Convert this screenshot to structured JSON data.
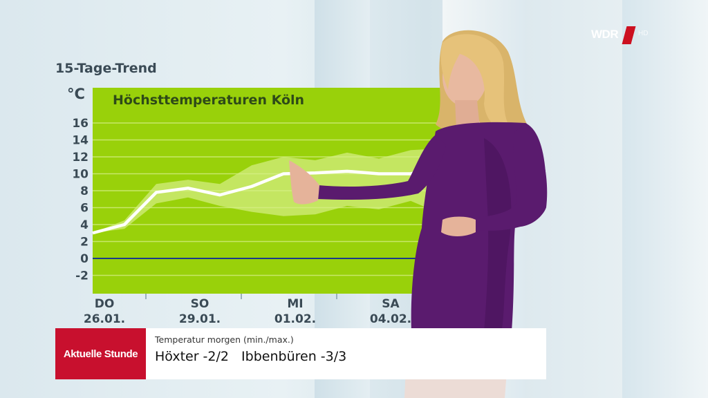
{
  "broadcast": {
    "channel_logo": "WDR",
    "channel_logo_suffix": "HD"
  },
  "chart": {
    "heading": "15-Tage-Trend",
    "unit": "°C",
    "panel_title": "Höchsttemperaturen Köln",
    "background_color": "#99d10a",
    "line_color": "#ffffff",
    "zero_line_color": "#1b3a8a"
  },
  "chart_data": {
    "type": "line",
    "title": "Höchsttemperaturen Köln",
    "ylabel": "°C",
    "ylim": [
      -3,
      17
    ],
    "yticks": [
      16,
      14,
      12,
      10,
      8,
      6,
      4,
      2,
      0,
      -2
    ],
    "xtick_labels": [
      {
        "day": "DO",
        "date": "26.01."
      },
      {
        "day": "SO",
        "date": "29.01."
      },
      {
        "day": "MI",
        "date": "01.02."
      },
      {
        "day": "SA",
        "date": "04.02."
      }
    ],
    "x": [
      0,
      1,
      2,
      3,
      4,
      5,
      6,
      7,
      8,
      9,
      10,
      11
    ],
    "series": [
      {
        "values": [
          3,
          4,
          7.8,
          8.3,
          7.5,
          8.5,
          10,
          10.1,
          10.3,
          10,
          10,
          11
        ]
      }
    ],
    "band_upper": [
      3,
      4.5,
      8.8,
      9.3,
      8.8,
      11,
      12,
      11.6,
      12.5,
      11.8,
      12.8,
      13
    ],
    "band_lower": [
      3,
      3.5,
      6.5,
      7.2,
      6.2,
      5.5,
      5,
      5.2,
      6.2,
      5.8,
      6.8,
      5.2
    ],
    "grid": true
  },
  "lower_third": {
    "show_name": "Aktuelle Stunde",
    "caption": "Temperatur morgen (min./max.)",
    "entries": [
      "Höxter -2/2",
      "Ibbenbüren -3/3"
    ],
    "show_color": "#c8102e"
  }
}
